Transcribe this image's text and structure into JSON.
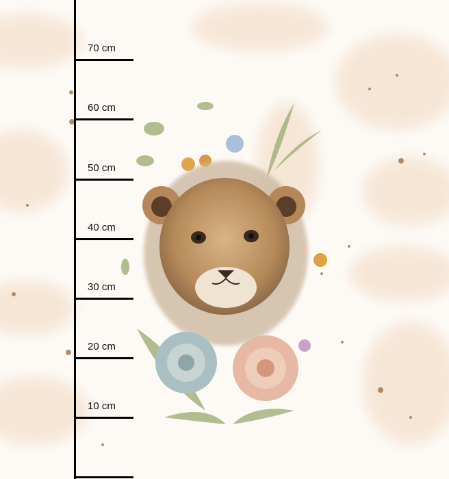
{
  "ruler": {
    "unit": "cm",
    "ticks": [
      {
        "label": "70 cm",
        "value": 70
      },
      {
        "label": "60 cm",
        "value": 60
      },
      {
        "label": "50 cm",
        "value": 50
      },
      {
        "label": "40 cm",
        "value": 40
      },
      {
        "label": "30 cm",
        "value": 30
      },
      {
        "label": "20 cm",
        "value": 20
      },
      {
        "label": "10 cm",
        "value": 10
      },
      {
        "label": "",
        "value": 0
      }
    ]
  },
  "artwork": {
    "subject": "lion-cub-with-flowers",
    "colors": {
      "background": "#fdfaf6",
      "wash": "#f3dcc6",
      "fur": "#c59b6a",
      "splatter": "#9a6a3c",
      "leaf": "#9fae78",
      "rose": "#e7b9a4",
      "succulent": "#a9bfc2"
    }
  }
}
